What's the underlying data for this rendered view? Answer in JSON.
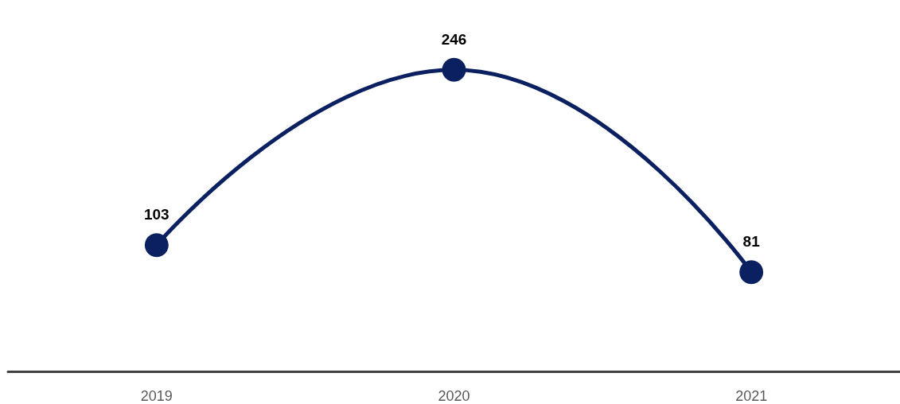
{
  "chart_data": {
    "type": "line",
    "categories": [
      "2019",
      "2020",
      "2021"
    ],
    "series": [
      {
        "color": "#0b2060",
        "values": [
          103,
          246,
          81
        ]
      }
    ],
    "data_labels": true,
    "marker": "circle",
    "line_style": "solid",
    "grid": false,
    "tick_labels": "x"
  }
}
